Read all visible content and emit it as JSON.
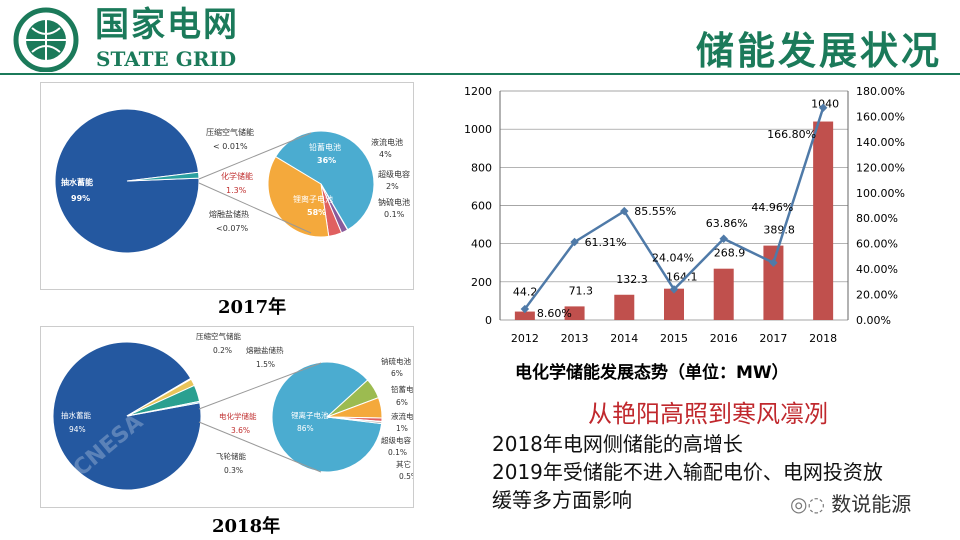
{
  "header": {
    "logo_cn": "国家电网",
    "logo_en": "STATE GRID",
    "title": "储能发展状况"
  },
  "pie2017": {
    "caption": "2017年",
    "main": [
      {
        "label": "抽水蓄能",
        "pct": "99%",
        "value": 98.7,
        "color": "#2458a0"
      },
      {
        "label": "化学储能",
        "pct": "1.3%",
        "value": 1.3,
        "color": "#2aa0a0"
      }
    ],
    "side_labels": [
      {
        "label": "压缩空气储能",
        "pct": "< 0.01%"
      },
      {
        "label": "化学储能",
        "pct": "1.3%"
      },
      {
        "label": "熔融盐储热",
        "pct": "<0.07%"
      }
    ],
    "sub": [
      {
        "label": "锂离子电池",
        "pct": "58%",
        "value": 58,
        "color": "#4bacd0"
      },
      {
        "label": "铅蓄电池",
        "pct": "36%",
        "value": 36,
        "color": "#f4a93c"
      },
      {
        "label": "液流电池",
        "pct": "4%",
        "value": 4,
        "color": "#e06060"
      },
      {
        "label": "超级电容",
        "pct": "2%",
        "value": 2,
        "color": "#8a5a9a"
      },
      {
        "label": "钠硫电池",
        "pct": "0.1%",
        "value": 0.1,
        "color": "#7a9ad0"
      }
    ]
  },
  "pie2018": {
    "caption": "2018年",
    "main": [
      {
        "label": "抽水蓄能",
        "pct": "94%",
        "value": 94,
        "color": "#2458a0"
      },
      {
        "label": "压缩空气储能",
        "pct": "0.2%",
        "value": 0.2,
        "color": "#ccc"
      },
      {
        "label": "熔融盐储热",
        "pct": "1.5%",
        "value": 1.5,
        "color": "#e8c45a"
      },
      {
        "label": "电化学储能",
        "pct": "3.6%",
        "value": 3.6,
        "color": "#2aa090"
      },
      {
        "label": "飞轮储能",
        "pct": "0.3%",
        "value": 0.3,
        "color": "#66ccee"
      }
    ],
    "sub": [
      {
        "label": "锂离子电池",
        "pct": "86%",
        "value": 86,
        "color": "#4bacd0"
      },
      {
        "label": "钠硫电池",
        "pct": "6%",
        "value": 6,
        "color": "#9cbb50"
      },
      {
        "label": "铅蓄电池",
        "pct": "6%",
        "value": 6,
        "color": "#f4a93c"
      },
      {
        "label": "液流电池",
        "pct": "1%",
        "value": 1,
        "color": "#e06060"
      },
      {
        "label": "超级电容",
        "pct": "0.1%",
        "value": 0.1,
        "color": "#8a5a9a"
      },
      {
        "label": "其它",
        "pct": "0.5%",
        "value": 0.5,
        "color": "#aaa"
      }
    ],
    "watermark": "CNESA"
  },
  "chart_data": {
    "type": "bar+line",
    "title": "电化学储能发展态势（单位：MW）",
    "categories": [
      "2012",
      "2013",
      "2014",
      "2015",
      "2016",
      "2017",
      "2018"
    ],
    "series": [
      {
        "type": "bar",
        "values": [
          44.2,
          71.3,
          132.3,
          164.1,
          268.9,
          389.8,
          1040
        ],
        "labels": [
          "44.2",
          "71.3",
          "132.3",
          "164.1",
          "268.9",
          "389.8",
          "1040"
        ],
        "color": "#c0504d"
      },
      {
        "type": "line",
        "axis": "right",
        "values": [
          8.6,
          61.31,
          85.55,
          24.04,
          63.86,
          44.96,
          166.8
        ],
        "labels": [
          "8.60%",
          "61.31%",
          "85.55%",
          "24.04%",
          "63.86%",
          "44.96%",
          "166.80%"
        ],
        "color": "#4f7aa8"
      }
    ],
    "ylim": [
      0,
      1200
    ],
    "yticks": [
      "0",
      "200",
      "400",
      "600",
      "800",
      "1000",
      "1200"
    ],
    "y2lim": [
      0,
      180
    ],
    "y2ticks": [
      "0.00%",
      "20.00%",
      "40.00%",
      "60.00%",
      "80.00%",
      "100.00%",
      "120.00%",
      "140.00%",
      "160.00%",
      "180.00%"
    ],
    "grid": true
  },
  "text": {
    "headline": "从艳阳高照到寒风凛冽",
    "line1": "2018年电网侧储能的高增长",
    "line2": "2019年受储能不进入输配电价、电网投资放",
    "line3": "缓等多方面影响",
    "watermark": "数说能源"
  }
}
